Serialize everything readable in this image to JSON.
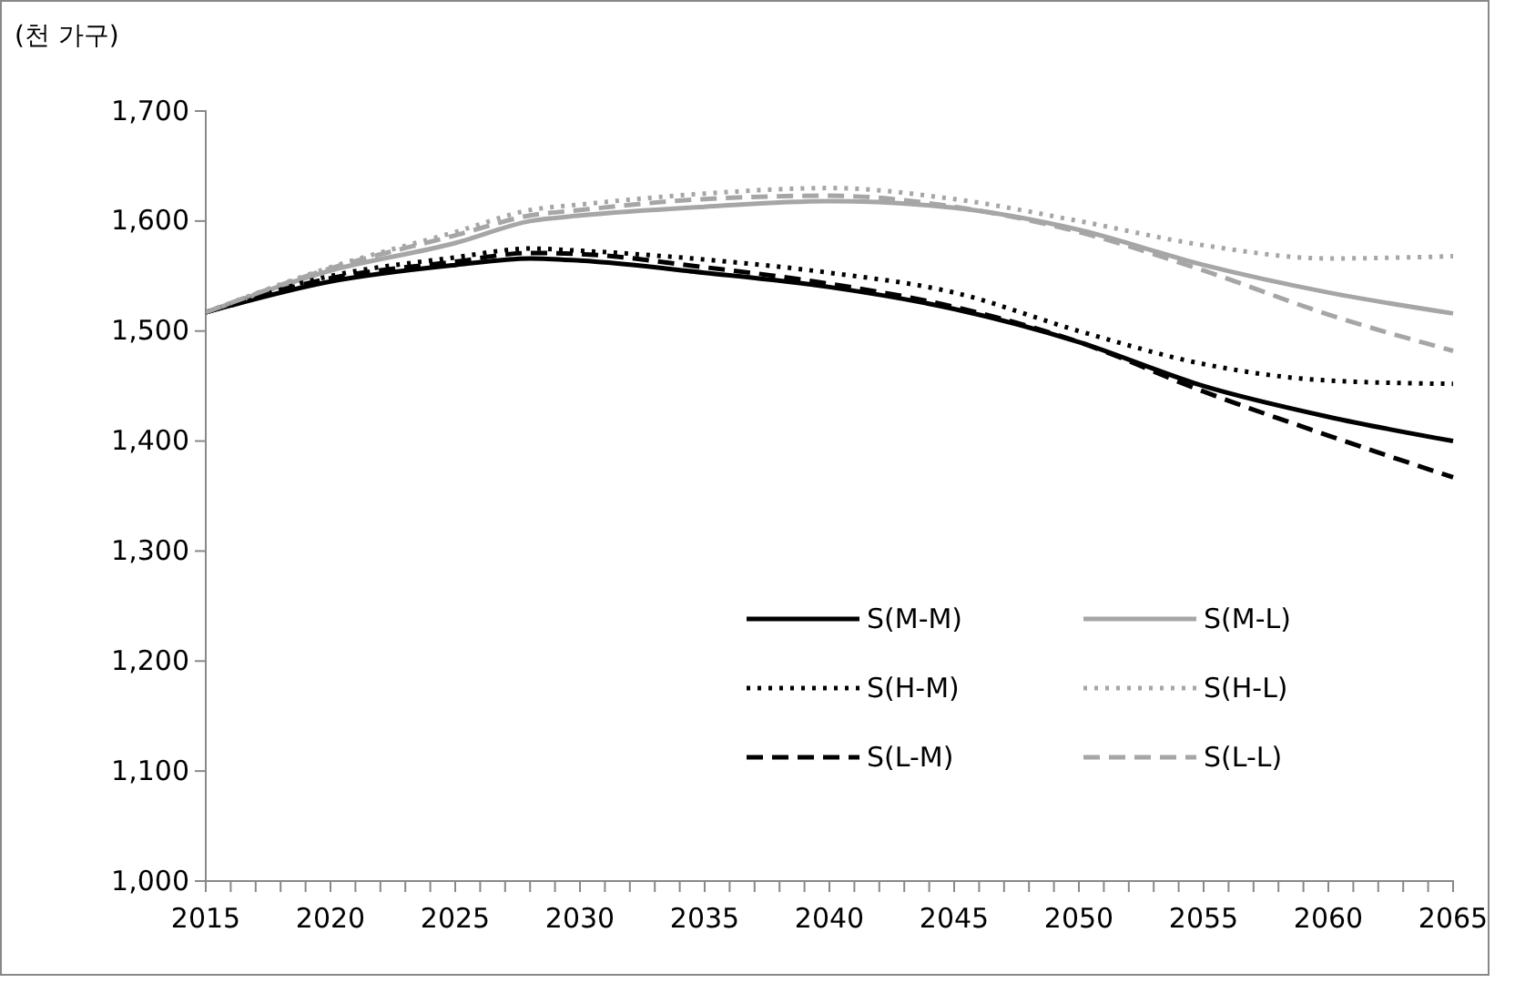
{
  "chart_data": {
    "type": "line",
    "ylabel": "(천 가구)",
    "x": [
      2015,
      2020,
      2025,
      2028,
      2030,
      2035,
      2040,
      2045,
      2050,
      2055,
      2060,
      2065
    ],
    "xlim": [
      2015,
      2065
    ],
    "xticks": [
      2015,
      {
        "value": 2016,
        "label": null
      },
      {
        "value": 2017,
        "label": null
      },
      {
        "value": 2018,
        "label": null
      },
      {
        "value": 2019,
        "label": null
      },
      2020,
      {
        "value": 2021,
        "label": null
      },
      {
        "value": 2022,
        "label": null
      },
      {
        "value": 2023,
        "label": null
      },
      {
        "value": 2024,
        "label": null
      },
      2025,
      {
        "value": 2026,
        "label": null
      },
      {
        "value": 2027,
        "label": null
      },
      {
        "value": 2028,
        "label": null
      },
      {
        "value": 2029,
        "label": null
      },
      2030,
      {
        "value": 2031,
        "label": null
      },
      {
        "value": 2032,
        "label": null
      },
      {
        "value": 2033,
        "label": null
      },
      {
        "value": 2034,
        "label": null
      },
      2035,
      {
        "value": 2036,
        "label": null
      },
      {
        "value": 2037,
        "label": null
      },
      {
        "value": 2038,
        "label": null
      },
      {
        "value": 2039,
        "label": null
      },
      2040,
      {
        "value": 2041,
        "label": null
      },
      {
        "value": 2042,
        "label": null
      },
      {
        "value": 2043,
        "label": null
      },
      {
        "value": 2044,
        "label": null
      },
      2045,
      {
        "value": 2046,
        "label": null
      },
      {
        "value": 2047,
        "label": null
      },
      {
        "value": 2048,
        "label": null
      },
      {
        "value": 2049,
        "label": null
      },
      2050,
      {
        "value": 2051,
        "label": null
      },
      {
        "value": 2052,
        "label": null
      },
      {
        "value": 2053,
        "label": null
      },
      {
        "value": 2054,
        "label": null
      },
      2055,
      {
        "value": 2056,
        "label": null
      },
      {
        "value": 2057,
        "label": null
      },
      {
        "value": 2058,
        "label": null
      },
      {
        "value": 2059,
        "label": null
      },
      2060,
      {
        "value": 2061,
        "label": null
      },
      {
        "value": 2062,
        "label": null
      },
      {
        "value": 2063,
        "label": null
      },
      {
        "value": 2064,
        "label": null
      },
      2065
    ],
    "ylim": [
      1000,
      1700
    ],
    "yticks": [
      {
        "value": 1000,
        "label": "1,000"
      },
      {
        "value": 1100,
        "label": "1,100"
      },
      {
        "value": 1200,
        "label": "1,200"
      },
      {
        "value": 1300,
        "label": "1,300"
      },
      {
        "value": 1400,
        "label": "1,400"
      },
      {
        "value": 1500,
        "label": "1,500"
      },
      {
        "value": 1600,
        "label": "1,600"
      },
      {
        "value": 1700,
        "label": "1,700"
      }
    ],
    "legend": "right",
    "grid": false,
    "series": [
      {
        "name": "S(M-M)",
        "color": "#000000",
        "line_style": "solid",
        "values": [
          1517,
          1545,
          1560,
          1566,
          1564,
          1553,
          1540,
          1520,
          1490,
          1450,
          1422,
          1400
        ]
      },
      {
        "name": "S(M-L)",
        "color": "#a6a6a6",
        "line_style": "solid",
        "values": [
          1517,
          1555,
          1580,
          1600,
          1605,
          1613,
          1618,
          1612,
          1592,
          1560,
          1535,
          1516
        ]
      },
      {
        "name": "S(H-M)",
        "color": "#000000",
        "line_style": "dotted",
        "values": [
          1517,
          1550,
          1567,
          1575,
          1573,
          1565,
          1553,
          1535,
          1500,
          1470,
          1455,
          1452
        ]
      },
      {
        "name": "S(H-L)",
        "color": "#a6a6a6",
        "line_style": "dotted",
        "values": [
          1517,
          1558,
          1590,
          1610,
          1615,
          1625,
          1630,
          1620,
          1600,
          1578,
          1566,
          1568
        ]
      },
      {
        "name": "S(L-M)",
        "color": "#000000",
        "line_style": "dashed",
        "values": [
          1517,
          1548,
          1563,
          1571,
          1570,
          1558,
          1543,
          1522,
          1490,
          1445,
          1405,
          1367
        ]
      },
      {
        "name": "S(L-L)",
        "color": "#a6a6a6",
        "line_style": "dashed",
        "values": [
          1517,
          1557,
          1587,
          1605,
          1610,
          1620,
          1623,
          1613,
          1590,
          1555,
          1515,
          1482
        ]
      }
    ]
  }
}
